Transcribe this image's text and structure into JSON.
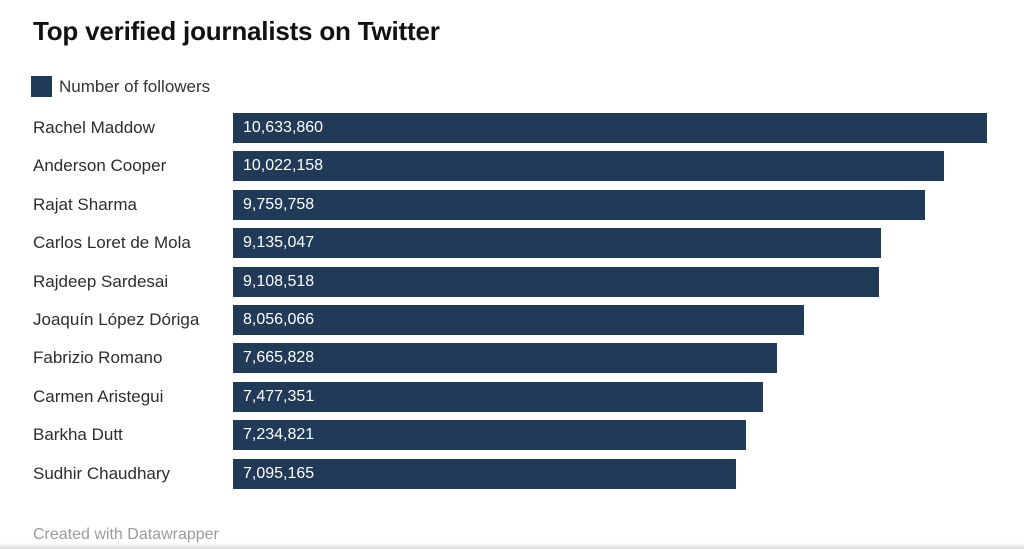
{
  "header": {
    "title": "Top verified journalists on Twitter"
  },
  "legend": {
    "label": "Number of followers",
    "swatch_color": "#213a58"
  },
  "footer": {
    "text": "Created with Datawrapper"
  },
  "chart_data": {
    "type": "bar",
    "orientation": "horizontal",
    "title": "Top verified journalists on Twitter",
    "xlabel": "",
    "ylabel": "",
    "legend_entries": [
      "Number of followers"
    ],
    "legend_position": "top-left",
    "grid": false,
    "xlim": [
      0,
      10633860
    ],
    "bar_color": "#213a58",
    "value_label_color": "#ffffff",
    "categories": [
      "Rachel Maddow",
      "Anderson Cooper",
      "Rajat Sharma",
      "Carlos Loret de Mola",
      "Rajdeep Sardesai",
      "Joaquín López Dóriga",
      "Fabrizio Romano",
      "Carmen Aristegui",
      "Barkha Dutt",
      "Sudhir Chaudhary"
    ],
    "values": [
      10633860,
      10022158,
      9759758,
      9135047,
      9108518,
      8056066,
      7665828,
      7477351,
      7234821,
      7095165
    ],
    "value_labels": [
      "10,633,860",
      "10,022,158",
      "9,759,758",
      "9,135,047",
      "9,108,518",
      "8,056,066",
      "7,665,828",
      "7,477,351",
      "7,234,821",
      "7,095,165"
    ]
  }
}
